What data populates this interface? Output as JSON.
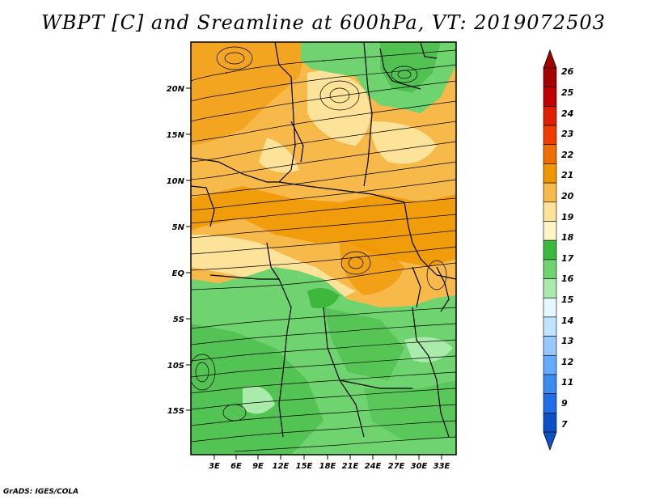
{
  "title": "WBPT [C] and Sreamline at 600hPa, VT: 2019072503",
  "footer": "GrADS: IGES/COLA",
  "lat_labels": [
    "20N",
    "15N",
    "10N",
    "5N",
    "EQ",
    "5S",
    "10S",
    "15S"
  ],
  "lon_labels": [
    "3E",
    "6E",
    "9E",
    "12E",
    "15E",
    "18E",
    "21E",
    "24E",
    "27E",
    "30E",
    "33E"
  ],
  "colorbar": {
    "labels": [
      "26",
      "25",
      "24",
      "23",
      "22",
      "21",
      "20",
      "19",
      "18",
      "17",
      "16",
      "15",
      "14",
      "13",
      "12",
      "11",
      "9",
      "7"
    ],
    "colors": [
      "#a50000",
      "#c00000",
      "#e01e00",
      "#f03c00",
      "#f06e00",
      "#f09600",
      "#f7b94a",
      "#fde39a",
      "#fdf5c8",
      "#3db83d",
      "#6fd36f",
      "#aaeaaa",
      "#e6f8ff",
      "#c0e4ff",
      "#96c8ff",
      "#64aaff",
      "#3c8cf0",
      "#1e6ee6",
      "#0a50c8"
    ],
    "upper_arrow_color": "#a50000",
    "lower_arrow_color": "#0a50c8"
  },
  "field_colors": {
    "warm_dark": "#f09600",
    "warm": "#f7b94a",
    "warm_light": "#fde39a",
    "cool": "#6fd36f",
    "cool_dark": "#3db83d",
    "cool_light": "#aaeaaa"
  }
}
